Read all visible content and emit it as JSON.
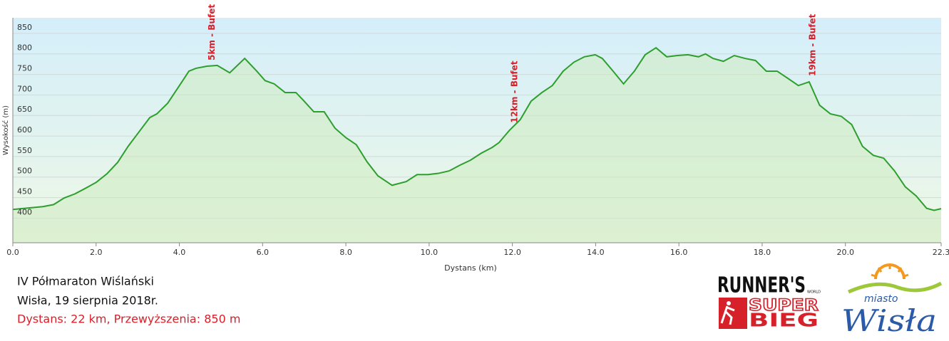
{
  "chart_data": {
    "type": "area",
    "x_label": "Dystans  (km)",
    "y_label": "Wysokość (m)",
    "x": [
      0,
      0.2,
      0.72,
      0.98,
      1.23,
      1.49,
      1.75,
      2.0,
      2.26,
      2.52,
      2.77,
      3.03,
      3.29,
      3.46,
      3.72,
      3.97,
      4.23,
      4.4,
      4.66,
      4.91,
      5.21,
      5.57,
      5.86,
      6.06,
      6.28,
      6.54,
      6.8,
      6.97,
      7.23,
      7.48,
      7.74,
      8.0,
      8.25,
      8.51,
      8.77,
      9.11,
      9.45,
      9.71,
      9.97,
      10.22,
      10.48,
      10.74,
      10.99,
      11.25,
      11.51,
      11.68,
      11.93,
      12.19,
      12.45,
      12.71,
      12.96,
      13.22,
      13.48,
      13.73,
      13.99,
      14.16,
      14.42,
      14.67,
      14.93,
      15.19,
      15.45,
      15.71,
      15.96,
      16.22,
      16.47,
      16.64,
      16.82,
      17.07,
      17.33,
      17.59,
      17.84,
      18.1,
      18.36,
      18.61,
      18.87,
      19.13,
      19.38,
      19.64,
      19.9,
      20.15,
      20.41,
      20.67,
      20.92,
      21.18,
      21.44,
      21.7,
      21.95,
      22.13,
      22.3
    ],
    "values": [
      421,
      423,
      428,
      433,
      449,
      459,
      473,
      487,
      508,
      536,
      575,
      610,
      645,
      654,
      680,
      718,
      758,
      765,
      770,
      772,
      754,
      789,
      758,
      735,
      727,
      706,
      706,
      688,
      659,
      659,
      619,
      596,
      579,
      537,
      503,
      480,
      489,
      506,
      506,
      509,
      515,
      529,
      541,
      558,
      572,
      584,
      614,
      640,
      685,
      706,
      723,
      758,
      780,
      793,
      798,
      789,
      758,
      727,
      758,
      798,
      815,
      793,
      796,
      798,
      793,
      800,
      789,
      782,
      796,
      789,
      784,
      758,
      758,
      741,
      723,
      732,
      675,
      654,
      648,
      628,
      575,
      553,
      546,
      515,
      476,
      454,
      424,
      419,
      423
    ],
    "color": "#2e9e2e",
    "xlim": [
      0,
      22.3
    ],
    "ylim": [
      340,
      888
    ],
    "xticks": [
      {
        "value": 0,
        "label": "0.0"
      },
      {
        "value": 2,
        "label": "2.0"
      },
      {
        "value": 4,
        "label": "4.0"
      },
      {
        "value": 6,
        "label": "6.0"
      },
      {
        "value": 8,
        "label": "8.0"
      },
      {
        "value": 10,
        "label": "10.0"
      },
      {
        "value": 12,
        "label": "12.0"
      },
      {
        "value": 14,
        "label": "14.0"
      },
      {
        "value": 16,
        "label": "16.0"
      },
      {
        "value": 18,
        "label": "18.0"
      },
      {
        "value": 20,
        "label": "20.0"
      },
      22.3
    ],
    "yticks": [
      400,
      450,
      500,
      550,
      600,
      650,
      700,
      750,
      800,
      850
    ],
    "grid": true,
    "annotations": [
      {
        "text": "5km - Bufet",
        "x": 4.7
      },
      {
        "text": "12km - Bufet",
        "x": 11.97
      },
      {
        "text": "19km - Bufet",
        "x": 19.13
      }
    ]
  },
  "event": {
    "title": "IV Półmaraton Wiślański",
    "date": "Wisła, 19 sierpnia 2018r.",
    "stats": "Dystans: 22 km, Przewyższenia: 850 m"
  },
  "logos": {
    "runners": "RUNNER'S",
    "world": "WORLD",
    "super": "SUPER",
    "bieg": "BIEG",
    "miasto": "miasto",
    "wisla": "Wisła"
  }
}
